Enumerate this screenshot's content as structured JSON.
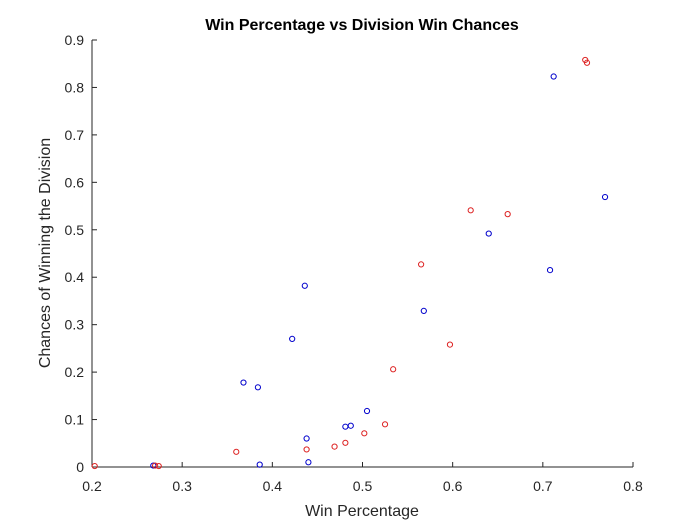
{
  "chart_data": {
    "type": "scatter",
    "title": "Win Percentage vs Division Win Chances",
    "xlabel": "Win Percentage",
    "ylabel": "Chances of Winning the Division",
    "xlim": [
      0.2,
      0.8
    ],
    "ylim": [
      0,
      0.9
    ],
    "xticks": [
      "0.2",
      "0.3",
      "0.4",
      "0.5",
      "0.6",
      "0.7",
      "0.8"
    ],
    "yticks": [
      "0",
      "0.1",
      "0.2",
      "0.3",
      "0.4",
      "0.5",
      "0.6",
      "0.7",
      "0.8",
      "0.9"
    ],
    "grid": false,
    "series": [
      {
        "color": "#0000cc",
        "points": [
          [
            0.268,
            0.003
          ],
          [
            0.368,
            0.178
          ],
          [
            0.384,
            0.168
          ],
          [
            0.386,
            0.005
          ],
          [
            0.422,
            0.27
          ],
          [
            0.436,
            0.382
          ],
          [
            0.438,
            0.06
          ],
          [
            0.44,
            0.01
          ],
          [
            0.481,
            0.085
          ],
          [
            0.487,
            0.087
          ],
          [
            0.505,
            0.118
          ],
          [
            0.568,
            0.329
          ],
          [
            0.64,
            0.492
          ],
          [
            0.708,
            0.415
          ],
          [
            0.712,
            0.823
          ],
          [
            0.769,
            0.569
          ]
        ]
      },
      {
        "color": "#dd2222",
        "points": [
          [
            0.203,
            0.002
          ],
          [
            0.27,
            0.003
          ],
          [
            0.274,
            0.002
          ],
          [
            0.36,
            0.032
          ],
          [
            0.438,
            0.037
          ],
          [
            0.469,
            0.043
          ],
          [
            0.481,
            0.051
          ],
          [
            0.502,
            0.071
          ],
          [
            0.525,
            0.09
          ],
          [
            0.534,
            0.206
          ],
          [
            0.565,
            0.427
          ],
          [
            0.597,
            0.258
          ],
          [
            0.62,
            0.541
          ],
          [
            0.661,
            0.533
          ],
          [
            0.747,
            0.858
          ],
          [
            0.749,
            0.852
          ]
        ]
      }
    ]
  }
}
